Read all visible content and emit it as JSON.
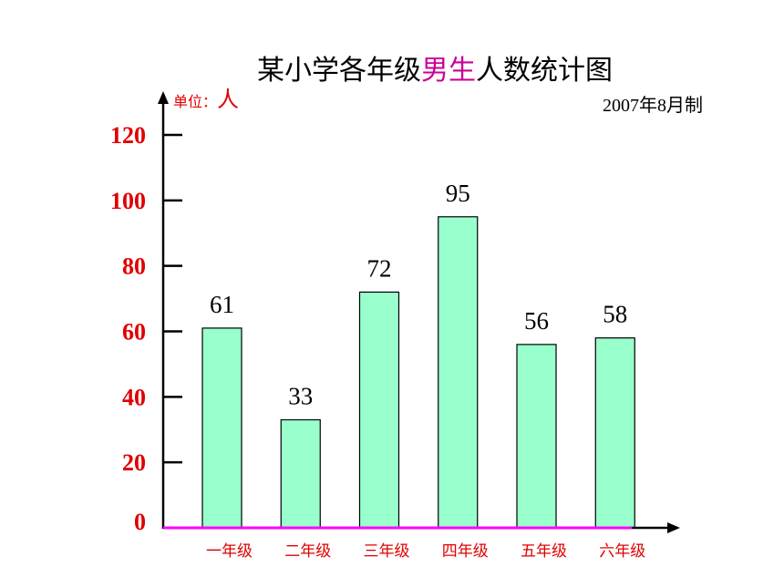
{
  "chart_data": {
    "type": "bar",
    "title_parts": [
      "某小学各年级",
      "男生",
      "人数统计图"
    ],
    "unit_label": "单位：",
    "unit_value": "人",
    "date_note": "2007年8月制",
    "categories": [
      "一年级",
      "二年级",
      "三年级",
      "四年级",
      "五年级",
      "六年级"
    ],
    "values": [
      61,
      33,
      72,
      95,
      56,
      58
    ],
    "data_labels": [
      "61",
      "33",
      "72",
      "95",
      "56",
      "58"
    ],
    "ylim": [
      0,
      120
    ],
    "yticks": [
      0,
      20,
      40,
      60,
      80,
      100,
      120
    ],
    "grid": false,
    "legend": "none",
    "colors": {
      "bar_fill": "#99ffcc",
      "title_highlight": "#cc0099",
      "labels": "#e00000",
      "baseline": "#ff00ff"
    }
  }
}
